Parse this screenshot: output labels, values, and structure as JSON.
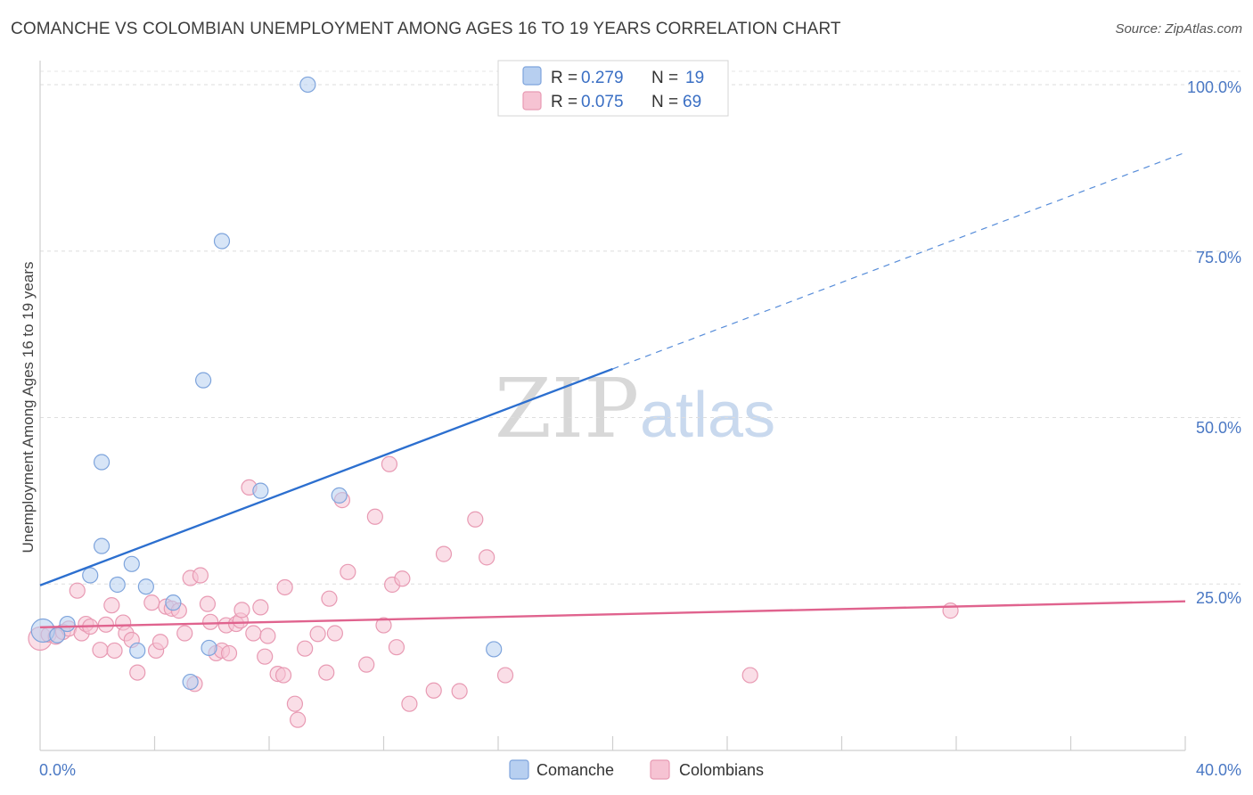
{
  "title": "COMANCHE VS COLOMBIAN UNEMPLOYMENT AMONG AGES 16 TO 19 YEARS CORRELATION CHART",
  "source": "Source: ZipAtlas.com",
  "watermark": {
    "zip": "ZIP",
    "atlas": "atlas"
  },
  "colors": {
    "comanche_fill": "#b7cff0",
    "comanche_stroke": "#7ea4dc",
    "comanche_line": "#2c6fcf",
    "colombian_fill": "#f6c3d3",
    "colombian_stroke": "#e89ab3",
    "colombian_line": "#e0638e",
    "axis_text": "#4a78c4"
  },
  "legend": {
    "rows": [
      {
        "r_label": "R =",
        "r_value": "0.279",
        "n_label": "N =",
        "n_value": "19",
        "series": "comanche"
      },
      {
        "r_label": "R =",
        "r_value": "0.075",
        "n_label": "N =",
        "n_value": "69",
        "series": "colombian"
      }
    ]
  },
  "bottom_legend": {
    "comanche": "Comanche",
    "colombian": "Colombians"
  },
  "chart_data": {
    "type": "scatter",
    "title": "COMANCHE VS COLOMBIAN UNEMPLOYMENT AMONG AGES 16 TO 19 YEARS CORRELATION CHART",
    "xlabel": "",
    "ylabel": "Unemployment Among Ages 16 to 19 years",
    "xlim": [
      0,
      40
    ],
    "ylim": [
      0,
      102
    ],
    "x_tick_labels": [
      "0.0%",
      "40.0%"
    ],
    "y_ticks": [
      25,
      50,
      75,
      100
    ],
    "y_tick_labels": [
      "25.0%",
      "50.0%",
      "75.0%",
      "100.0%"
    ],
    "grid": true,
    "series": [
      {
        "name": "Comanche",
        "r": 0.279,
        "n": 19,
        "points": [
          [
            0.1,
            18.0
          ],
          [
            0.6,
            17.3
          ],
          [
            0.95,
            19.0
          ],
          [
            1.75,
            26.3
          ],
          [
            2.15,
            30.7
          ],
          [
            2.15,
            43.3
          ],
          [
            2.7,
            24.9
          ],
          [
            3.2,
            28.0
          ],
          [
            3.4,
            15.0
          ],
          [
            3.7,
            24.6
          ],
          [
            4.65,
            22.2
          ],
          [
            5.25,
            10.3
          ],
          [
            5.7,
            55.6
          ],
          [
            5.9,
            15.4
          ],
          [
            6.35,
            76.5
          ],
          [
            7.7,
            39.0
          ],
          [
            9.35,
            100.0
          ],
          [
            10.45,
            38.3
          ],
          [
            15.85,
            15.2
          ]
        ],
        "trend": {
          "x0": 0,
          "y0": 24.8,
          "x_solid_end": 20.0,
          "x1": 40,
          "y1": 89.8
        }
      },
      {
        "name": "Colombians",
        "r": 0.075,
        "n": 69,
        "points": [
          [
            0.0,
            16.8
          ],
          [
            0.3,
            17.4
          ],
          [
            0.55,
            17.1
          ],
          [
            0.8,
            17.8
          ],
          [
            1.0,
            18.3
          ],
          [
            1.3,
            24.0
          ],
          [
            1.45,
            17.6
          ],
          [
            1.6,
            19.0
          ],
          [
            1.75,
            18.6
          ],
          [
            2.1,
            15.1
          ],
          [
            2.3,
            18.9
          ],
          [
            2.5,
            21.8
          ],
          [
            2.6,
            15.0
          ],
          [
            2.9,
            19.2
          ],
          [
            3.0,
            17.6
          ],
          [
            3.2,
            16.6
          ],
          [
            3.4,
            11.7
          ],
          [
            3.9,
            22.2
          ],
          [
            4.05,
            15.0
          ],
          [
            4.2,
            16.3
          ],
          [
            4.4,
            21.6
          ],
          [
            4.6,
            21.3
          ],
          [
            4.85,
            21.0
          ],
          [
            5.05,
            17.6
          ],
          [
            5.25,
            25.9
          ],
          [
            5.4,
            10.0
          ],
          [
            5.6,
            26.3
          ],
          [
            5.85,
            22.0
          ],
          [
            5.95,
            19.3
          ],
          [
            6.15,
            14.6
          ],
          [
            6.35,
            15.0
          ],
          [
            6.5,
            18.8
          ],
          [
            6.6,
            14.6
          ],
          [
            6.85,
            19.0
          ],
          [
            7.0,
            19.5
          ],
          [
            7.05,
            21.1
          ],
          [
            7.3,
            39.5
          ],
          [
            7.45,
            17.6
          ],
          [
            7.7,
            21.5
          ],
          [
            7.85,
            14.1
          ],
          [
            7.95,
            17.2
          ],
          [
            8.3,
            11.5
          ],
          [
            8.5,
            11.3
          ],
          [
            8.55,
            24.5
          ],
          [
            8.9,
            7.0
          ],
          [
            9.0,
            4.6
          ],
          [
            9.25,
            15.3
          ],
          [
            9.7,
            17.5
          ],
          [
            10.1,
            22.8
          ],
          [
            10.3,
            17.6
          ],
          [
            10.55,
            37.6
          ],
          [
            10.75,
            26.8
          ],
          [
            11.4,
            12.9
          ],
          [
            11.7,
            35.1
          ],
          [
            12.0,
            18.8
          ],
          [
            12.3,
            24.9
          ],
          [
            12.45,
            15.5
          ],
          [
            12.65,
            25.8
          ],
          [
            12.9,
            7.0
          ],
          [
            13.75,
            9.0
          ],
          [
            14.1,
            29.5
          ],
          [
            14.65,
            8.9
          ],
          [
            15.2,
            34.7
          ],
          [
            15.6,
            29.0
          ],
          [
            16.25,
            11.3
          ],
          [
            12.2,
            43.0
          ],
          [
            24.8,
            11.3
          ],
          [
            31.8,
            21.0
          ],
          [
            10.0,
            11.7
          ]
        ],
        "trend": {
          "x0": 0,
          "y0": 18.5,
          "x1": 40,
          "y1": 22.4
        }
      }
    ]
  }
}
